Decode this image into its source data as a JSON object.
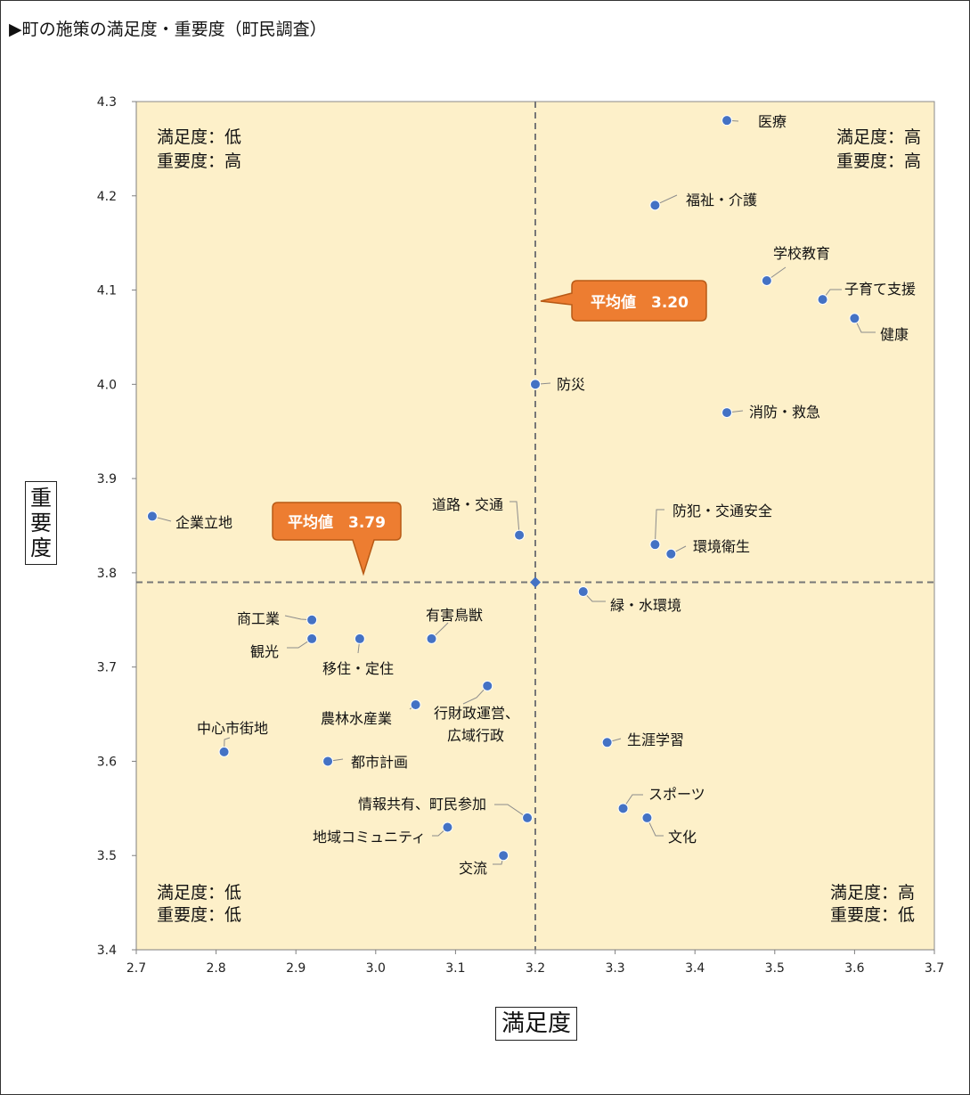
{
  "title": "▶町の施策の満足度・重要度（町民調査）",
  "colors": {
    "plot_bg": "#fdf0c9",
    "point": "#4472c4",
    "callout": "#ed7d31",
    "avg_line": "#777777"
  },
  "chart_data": {
    "type": "scatter",
    "xlabel": "満足度",
    "ylabel": "重要度",
    "xlim": [
      2.7,
      3.7
    ],
    "ylim": [
      3.4,
      4.3
    ],
    "x_ticks": [
      "2.7",
      "2.8",
      "2.9",
      "3.0",
      "3.1",
      "3.2",
      "3.3",
      "3.4",
      "3.5",
      "3.6",
      "3.7"
    ],
    "y_ticks": [
      "4.3",
      "4.2",
      "4.1",
      "4.0",
      "3.9",
      "3.8",
      "3.7",
      "3.6",
      "3.5",
      "3.4"
    ],
    "grid": false,
    "average": {
      "x": 3.2,
      "y": 3.79,
      "x_label": "平均値　3.20",
      "y_label": "平均値　3.79"
    },
    "quadrants": {
      "top_left": [
        "満足度：低",
        "重要度：高"
      ],
      "top_right": [
        "満足度：高",
        "重要度：高"
      ],
      "bottom_left": [
        "満足度：低",
        "重要度：低"
      ],
      "bottom_right": [
        "満足度：高",
        "重要度：低"
      ]
    },
    "points": [
      {
        "label": "医療",
        "x": 3.44,
        "y": 4.28
      },
      {
        "label": "福祉・介護",
        "x": 3.35,
        "y": 4.19
      },
      {
        "label": "学校教育",
        "x": 3.49,
        "y": 4.11
      },
      {
        "label": "子育て支援",
        "x": 3.56,
        "y": 4.09
      },
      {
        "label": "健康",
        "x": 3.6,
        "y": 4.07
      },
      {
        "label": "防災",
        "x": 3.2,
        "y": 4.0
      },
      {
        "label": "消防・救急",
        "x": 3.44,
        "y": 3.97
      },
      {
        "label": "企業立地",
        "x": 2.72,
        "y": 3.86
      },
      {
        "label": "道路・交通",
        "x": 3.18,
        "y": 3.84
      },
      {
        "label": "防犯・交通安全",
        "x": 3.35,
        "y": 3.83
      },
      {
        "label": "環境衛生",
        "x": 3.37,
        "y": 3.82
      },
      {
        "label": "緑・水環境",
        "x": 3.26,
        "y": 3.78
      },
      {
        "label": "商工業",
        "x": 2.92,
        "y": 3.75
      },
      {
        "label": "有害鳥獣",
        "x": 3.07,
        "y": 3.73
      },
      {
        "label": "観光",
        "x": 2.92,
        "y": 3.73
      },
      {
        "label": "移住・定住",
        "x": 2.98,
        "y": 3.73
      },
      {
        "label": "行財政運営、広域行政",
        "x": 3.14,
        "y": 3.68
      },
      {
        "label": "農林水産業",
        "x": 3.05,
        "y": 3.66
      },
      {
        "label": "生涯学習",
        "x": 3.29,
        "y": 3.62
      },
      {
        "label": "中心市街地",
        "x": 2.81,
        "y": 3.61
      },
      {
        "label": "都市計画",
        "x": 2.94,
        "y": 3.6
      },
      {
        "label": "スポーツ",
        "x": 3.31,
        "y": 3.55
      },
      {
        "label": "情報共有、町民参加",
        "x": 3.19,
        "y": 3.54
      },
      {
        "label": "文化",
        "x": 3.34,
        "y": 3.54
      },
      {
        "label": "地域コミュニティ",
        "x": 3.09,
        "y": 3.53
      },
      {
        "label": "交流",
        "x": 3.16,
        "y": 3.5
      }
    ]
  }
}
